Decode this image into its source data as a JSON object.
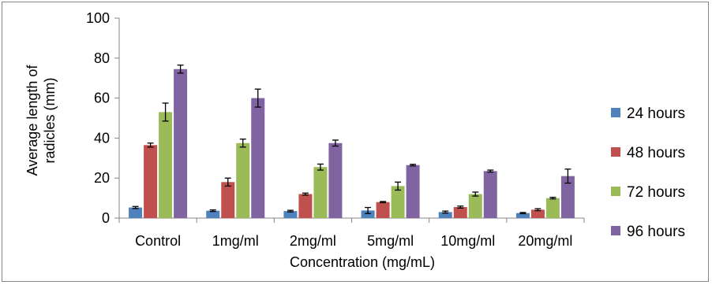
{
  "chart_data": {
    "type": "bar",
    "title": "",
    "xlabel": "Concentration (mg/mL)",
    "ylabel": "Average length of radicles (mm)",
    "ylabel_lines": [
      "Average length of",
      "radicles (mm)"
    ],
    "ylim": [
      0,
      100
    ],
    "yticks": [
      0,
      20,
      40,
      60,
      80,
      100
    ],
    "grid": false,
    "legend_position": "right",
    "categories": [
      "Control",
      "1mg/ml",
      "2mg/ml",
      "5mg/ml",
      "10mg/ml",
      "20mg/ml"
    ],
    "series": [
      {
        "name": "24 hours",
        "color": "#4f81bd",
        "values": [
          5.3,
          3.7,
          3.5,
          3.8,
          3.0,
          2.5
        ],
        "errors": [
          0.5,
          0.4,
          0.4,
          1.5,
          0.5,
          0.3
        ]
      },
      {
        "name": "48 hours",
        "color": "#c0504d",
        "values": [
          36.5,
          18.0,
          12.0,
          8.0,
          5.5,
          4.2
        ],
        "errors": [
          1.0,
          2.0,
          0.5,
          0.3,
          0.5,
          0.5
        ]
      },
      {
        "name": "72 hours",
        "color": "#9bbb59",
        "values": [
          53.0,
          37.5,
          25.5,
          16.0,
          12.0,
          10.0
        ],
        "errors": [
          4.5,
          2.0,
          1.5,
          2.0,
          1.0,
          0.4
        ]
      },
      {
        "name": "96 hours",
        "color": "#8064a2",
        "values": [
          74.5,
          60.0,
          37.5,
          26.5,
          23.5,
          21.0
        ],
        "errors": [
          2.0,
          4.5,
          1.5,
          0.4,
          0.5,
          3.5
        ]
      }
    ]
  }
}
